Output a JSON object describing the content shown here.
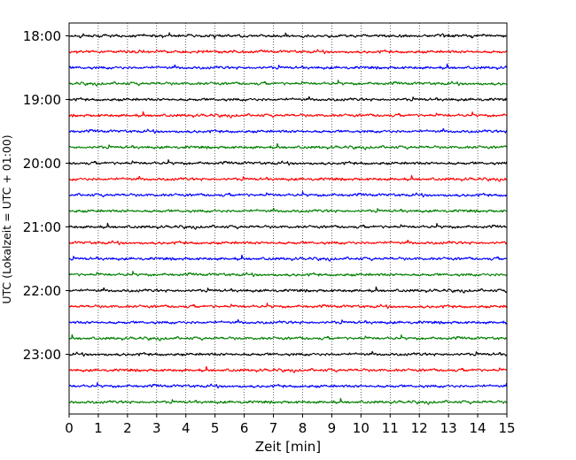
{
  "chart_data": {
    "type": "line",
    "subtype": "helicorder",
    "xlabel": "Zeit  [min]",
    "ylabel": "UTC (Lokalzeit = UTC + 01:00)",
    "xlim": [
      0,
      15
    ],
    "x_ticks": [
      0,
      1,
      2,
      3,
      4,
      5,
      6,
      7,
      8,
      9,
      10,
      11,
      12,
      13,
      14,
      15
    ],
    "x_tick_labels": [
      "0",
      "1",
      "2",
      "3",
      "4",
      "5",
      "6",
      "7",
      "8",
      "9",
      "10",
      "11",
      "12",
      "13",
      "14",
      "15"
    ],
    "y_tick_labels": [
      "18:00",
      "19:00",
      "20:00",
      "21:00",
      "22:00",
      "23:00"
    ],
    "grid": {
      "vertical": true,
      "style": "dotted"
    },
    "trace_colors": [
      "#000000",
      "#ff0000",
      "#0000ff",
      "#007f00"
    ],
    "trace_interval_minutes": 15,
    "series": [
      {
        "start": "18:00",
        "color": "#000000"
      },
      {
        "start": "18:15",
        "color": "#ff0000"
      },
      {
        "start": "18:30",
        "color": "#0000ff"
      },
      {
        "start": "18:45",
        "color": "#007f00"
      },
      {
        "start": "19:00",
        "color": "#000000"
      },
      {
        "start": "19:15",
        "color": "#ff0000"
      },
      {
        "start": "19:30",
        "color": "#0000ff"
      },
      {
        "start": "19:45",
        "color": "#007f00"
      },
      {
        "start": "20:00",
        "color": "#000000"
      },
      {
        "start": "20:15",
        "color": "#ff0000"
      },
      {
        "start": "20:30",
        "color": "#0000ff"
      },
      {
        "start": "20:45",
        "color": "#007f00"
      },
      {
        "start": "21:00",
        "color": "#000000"
      },
      {
        "start": "21:15",
        "color": "#ff0000"
      },
      {
        "start": "21:30",
        "color": "#0000ff"
      },
      {
        "start": "21:45",
        "color": "#007f00"
      },
      {
        "start": "22:00",
        "color": "#000000"
      },
      {
        "start": "22:15",
        "color": "#ff0000"
      },
      {
        "start": "22:30",
        "color": "#0000ff"
      },
      {
        "start": "22:45",
        "color": "#007f00"
      },
      {
        "start": "23:00",
        "color": "#000000"
      },
      {
        "start": "23:15",
        "color": "#ff0000"
      },
      {
        "start": "23:30",
        "color": "#0000ff"
      },
      {
        "start": "23:45",
        "color": "#007f00"
      }
    ]
  }
}
